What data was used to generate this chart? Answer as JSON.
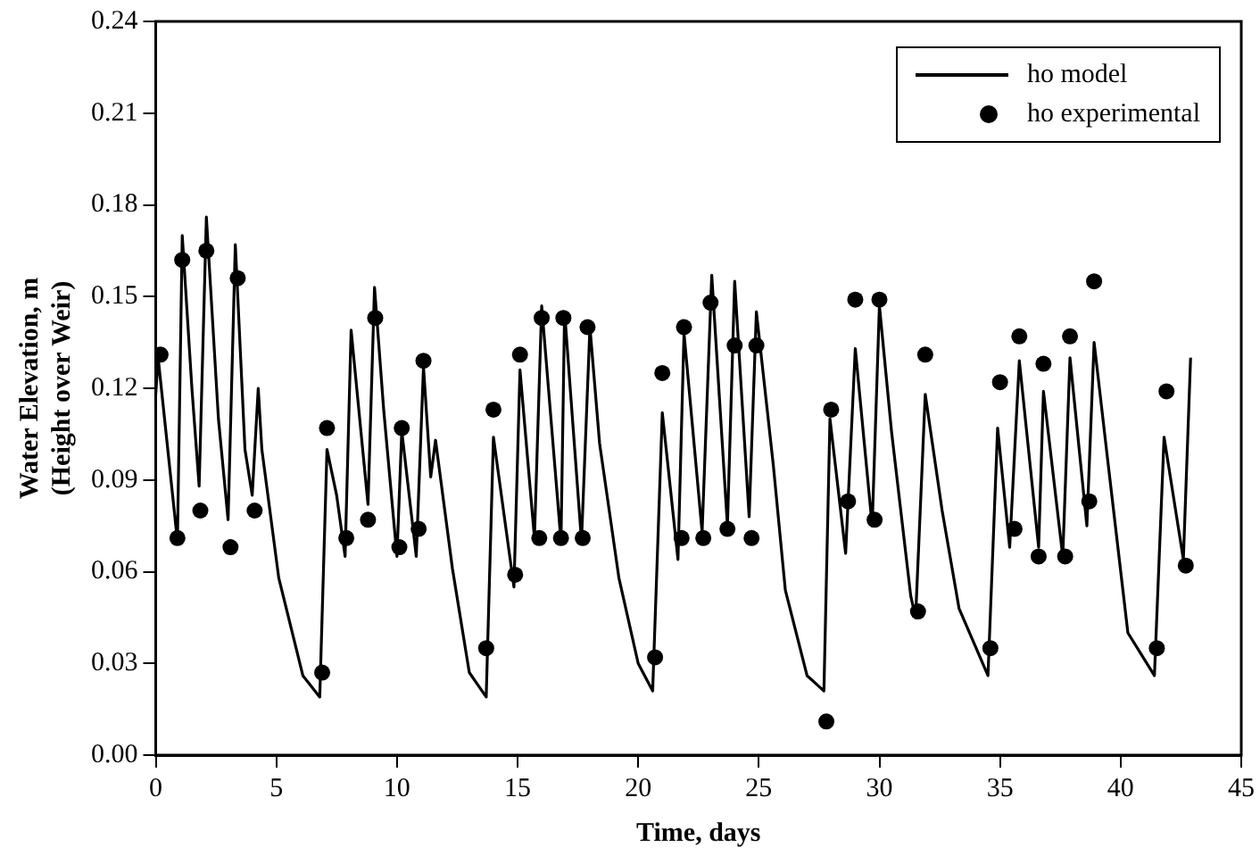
{
  "chart_data": {
    "type": "line",
    "xlabel": "Time, days",
    "ylabel": "Water Elevation, m\n(Height over Weir)",
    "xlim": [
      0,
      45
    ],
    "xticks": [
      0,
      5,
      10,
      15,
      20,
      25,
      30,
      35,
      40,
      45
    ],
    "ylim": [
      0,
      0.24
    ],
    "yticks": [
      {
        "value": 0,
        "label": "0.00"
      },
      0.03,
      0.06,
      0.09,
      0.12,
      0.15,
      0.18,
      0.21,
      0.24
    ],
    "grid": false,
    "legend": "top right",
    "series": [
      {
        "name": "ho model",
        "color": "#000000",
        "marker": "none",
        "line_style": "solid",
        "x": [
          0,
          0.1,
          0.5,
          0.9,
          1.1,
          1.5,
          1.8,
          2.1,
          2.6,
          3.0,
          3.3,
          3.7,
          4.0,
          4.25,
          4.4,
          5.1,
          6.1,
          6.8,
          7.1,
          7.5,
          7.85,
          8.1,
          8.8,
          9.07,
          9.45,
          10.0,
          10.2,
          10.8,
          11.1,
          11.4,
          11.6,
          12.3,
          13.0,
          13.7,
          14.0,
          14.85,
          15.1,
          15.7,
          16.0,
          16.8,
          16.95,
          17.65,
          18.0,
          18.4,
          19.2,
          20.0,
          20.6,
          21.0,
          21.65,
          21.9,
          22.65,
          23.05,
          23.7,
          24.0,
          24.6,
          24.9,
          25.6,
          26.1,
          27.0,
          27.7,
          27.95,
          28.6,
          29.0,
          29.7,
          30.0,
          30.5,
          31.3,
          31.5,
          31.9,
          32.6,
          33.3,
          34.5,
          34.9,
          35.4,
          35.8,
          36.6,
          36.8,
          37.6,
          37.9,
          38.6,
          38.9,
          39.5,
          40.3,
          41.4,
          41.8,
          42.6,
          42.9
        ],
        "values": [
          0.118,
          0.13,
          0.1,
          0.07,
          0.17,
          0.12,
          0.088,
          0.176,
          0.11,
          0.077,
          0.167,
          0.1,
          0.085,
          0.12,
          0.1,
          0.058,
          0.026,
          0.019,
          0.1,
          0.085,
          0.065,
          0.139,
          0.082,
          0.153,
          0.113,
          0.065,
          0.106,
          0.065,
          0.127,
          0.091,
          0.103,
          0.061,
          0.027,
          0.019,
          0.104,
          0.055,
          0.126,
          0.071,
          0.147,
          0.07,
          0.145,
          0.07,
          0.14,
          0.102,
          0.058,
          0.03,
          0.021,
          0.112,
          0.064,
          0.138,
          0.073,
          0.157,
          0.075,
          0.155,
          0.078,
          0.145,
          0.095,
          0.054,
          0.026,
          0.021,
          0.11,
          0.066,
          0.133,
          0.075,
          0.147,
          0.106,
          0.052,
          0.045,
          0.118,
          0.08,
          0.048,
          0.026,
          0.107,
          0.068,
          0.129,
          0.068,
          0.119,
          0.065,
          0.13,
          0.075,
          0.135,
          0.094,
          0.04,
          0.026,
          0.104,
          0.064,
          0.13
        ]
      },
      {
        "name": "ho experimental",
        "type": "scatter",
        "color": "#000000",
        "marker": "circle",
        "x": [
          0.2,
          0.9,
          1.1,
          1.85,
          2.1,
          3.1,
          3.4,
          4.1,
          6.9,
          7.1,
          7.9,
          8.8,
          9.1,
          10.1,
          10.2,
          10.9,
          11.1,
          13.7,
          14.0,
          14.9,
          15.1,
          15.9,
          16.0,
          16.8,
          16.9,
          17.7,
          17.9,
          20.7,
          21.0,
          21.8,
          21.9,
          22.7,
          23.0,
          23.7,
          24.0,
          24.7,
          24.9,
          27.8,
          28.0,
          28.7,
          29.0,
          29.8,
          30.0,
          31.6,
          31.9,
          34.6,
          35.0,
          35.6,
          35.8,
          36.6,
          36.8,
          37.7,
          37.9,
          38.7,
          38.9,
          41.5,
          41.9,
          42.7
        ],
        "values": [
          0.131,
          0.071,
          0.162,
          0.08,
          0.165,
          0.068,
          0.156,
          0.08,
          0.027,
          0.107,
          0.071,
          0.077,
          0.143,
          0.068,
          0.107,
          0.074,
          0.129,
          0.035,
          0.113,
          0.059,
          0.131,
          0.071,
          0.143,
          0.071,
          0.143,
          0.071,
          0.14,
          0.032,
          0.125,
          0.071,
          0.14,
          0.071,
          0.148,
          0.074,
          0.134,
          0.071,
          0.134,
          0.011,
          0.113,
          0.083,
          0.149,
          0.077,
          0.149,
          0.047,
          0.131,
          0.035,
          0.122,
          0.074,
          0.137,
          0.065,
          0.128,
          0.065,
          0.137,
          0.083,
          0.155,
          0.035,
          0.119,
          0.062
        ]
      }
    ]
  }
}
